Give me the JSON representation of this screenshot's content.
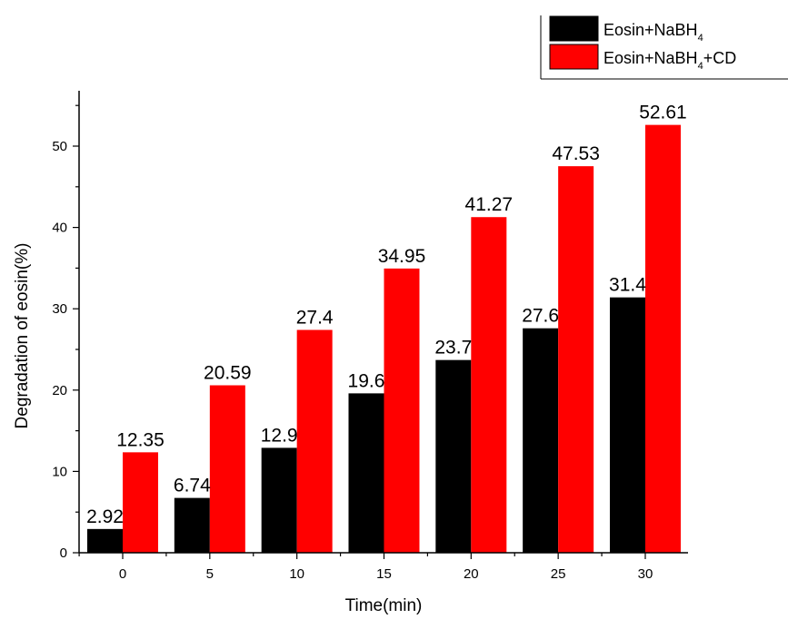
{
  "chart_data": {
    "type": "bar",
    "categories": [
      "0",
      "5",
      "10",
      "15",
      "20",
      "25",
      "30"
    ],
    "series": [
      {
        "name": "Eosin+NaBH4",
        "values": [
          2.92,
          6.74,
          12.9,
          19.6,
          23.7,
          27.6,
          31.4
        ],
        "color": "#000000"
      },
      {
        "name": "Eosin+NaBH4+CD",
        "values": [
          12.35,
          20.59,
          27.4,
          34.95,
          41.27,
          47.53,
          52.61
        ],
        "color": "#ff0000"
      }
    ],
    "data_labels": [
      [
        "2.92",
        "6.74",
        "12.9",
        "19.6",
        "23.7",
        "27.6",
        "31.4"
      ],
      [
        "12.35",
        "20.59",
        "27.4",
        "34.95",
        "41.27",
        "47.53",
        "52.61"
      ]
    ],
    "legend": [
      {
        "base": "Eosin+NaBH",
        "sub": "4",
        "tail": ""
      },
      {
        "base": "Eosin+NaBH",
        "sub": "4",
        "tail": "+CD"
      }
    ],
    "legend_position": "top-right",
    "xlabel": "Time(min)",
    "ylabel": "Degradation of eosin(%)",
    "ylim": [
      0,
      56
    ],
    "yticks": [
      "0",
      "10",
      "20",
      "30",
      "40",
      "50"
    ],
    "grid": false
  }
}
